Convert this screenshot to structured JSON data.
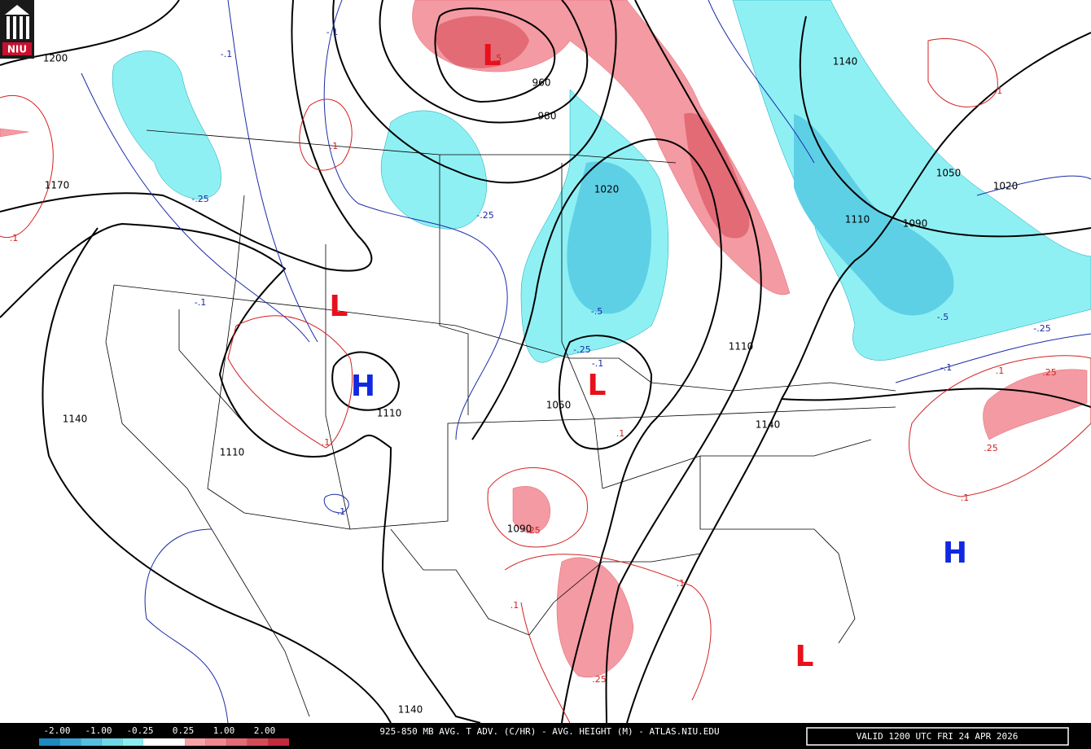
{
  "logo": "NIU",
  "highs_lows": [
    "L",
    "L",
    "L",
    "L",
    "H",
    "H"
  ],
  "height_labels": [
    "1200",
    "1170",
    "1140",
    "1110",
    "960",
    "980",
    "1020",
    "1110",
    "1050",
    "1110",
    "1140",
    "1090",
    "1140",
    "1050",
    "1020",
    "1090",
    "1110",
    "1140"
  ],
  "cold_advection_labels": [
    "-.1",
    "-.1",
    "-.25",
    "-.25",
    "-.1",
    "-.5",
    "-.25",
    "-.1",
    "-.1",
    "-.5",
    "-.25",
    "-.1"
  ],
  "warm_advection_labels": [
    ".5",
    ".1",
    ".1",
    ".1",
    ".1",
    ".25",
    ".1",
    ".1",
    ".25",
    ".1",
    ".25",
    ".25",
    ".1",
    ".1"
  ],
  "legend": {
    "labels": [
      "-2.00",
      "-1.00",
      "-0.25",
      "0.25",
      "1.00",
      "2.00"
    ],
    "colors": [
      "#1e88c0",
      "#3aa5d3",
      "#56bfe0",
      "#6fd6e8",
      "#8ceaf0",
      "#ffffff",
      "#ffffff",
      "#f7a2a8",
      "#ef8890",
      "#e26b76",
      "#d44a5a",
      "#c42a3e"
    ]
  },
  "footer": {
    "title": "925-850 MB AVG. T ADV. (C/HR) - AVG. HEIGHT (M) - ATLAS.NIU.EDU",
    "valid": "VALID 1200 UTC FRI 24 APR 2026"
  }
}
